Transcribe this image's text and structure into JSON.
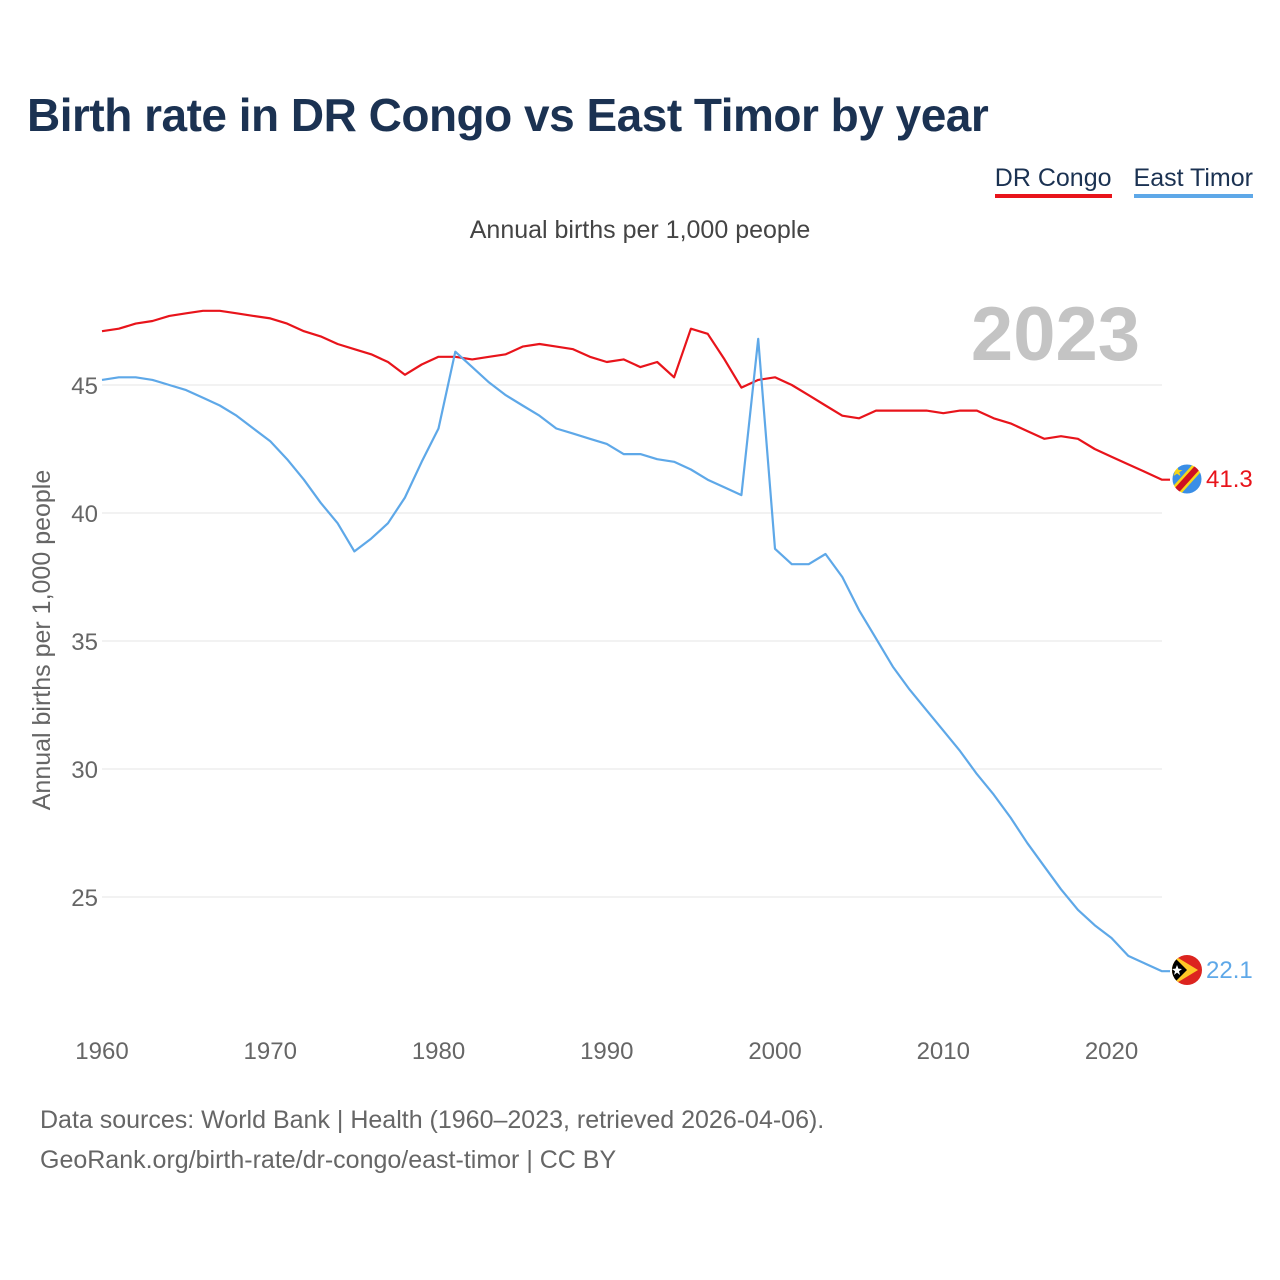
{
  "title": "Birth rate in DR Congo vs East Timor by year",
  "subtitle": "Annual births per 1,000 people",
  "legend": [
    {
      "name": "DR Congo",
      "color": "#e8141b"
    },
    {
      "name": "East Timor",
      "color": "#5ea8e8"
    }
  ],
  "footer": {
    "line1": "Data sources: World Bank | Health (1960–2023, retrieved 2026-04-06).",
    "line2": "GeoRank.org/birth-rate/dr-congo/east-timor | CC BY"
  },
  "chart_data": {
    "type": "line",
    "title": "Birth rate in DR Congo vs East Timor by year",
    "xlabel": "",
    "ylabel": "Annual births per 1,000 people",
    "year_label": "2023",
    "xlim": [
      1960,
      2023
    ],
    "ylim": [
      20.5,
      49
    ],
    "x_ticks": [
      1960,
      1970,
      1980,
      1990,
      2000,
      2010,
      2020
    ],
    "y_ticks": [
      25,
      30,
      35,
      40,
      45
    ],
    "grid": true,
    "x": [
      1960,
      1961,
      1962,
      1963,
      1964,
      1965,
      1966,
      1967,
      1968,
      1969,
      1970,
      1971,
      1972,
      1973,
      1974,
      1975,
      1976,
      1977,
      1978,
      1979,
      1980,
      1981,
      1982,
      1983,
      1984,
      1985,
      1986,
      1987,
      1988,
      1989,
      1990,
      1991,
      1992,
      1993,
      1994,
      1995,
      1996,
      1997,
      1998,
      1999,
      2000,
      2001,
      2002,
      2003,
      2004,
      2005,
      2006,
      2007,
      2008,
      2009,
      2010,
      2011,
      2012,
      2013,
      2014,
      2015,
      2016,
      2017,
      2018,
      2019,
      2020,
      2021,
      2022,
      2023
    ],
    "series": [
      {
        "name": "DR Congo",
        "color": "#e8141b",
        "end_label": "41.3",
        "values": [
          47.1,
          47.2,
          47.4,
          47.5,
          47.7,
          47.8,
          47.9,
          47.9,
          47.8,
          47.7,
          47.6,
          47.4,
          47.1,
          46.9,
          46.6,
          46.4,
          46.2,
          45.9,
          45.4,
          45.8,
          46.1,
          46.1,
          46.0,
          46.1,
          46.2,
          46.5,
          46.6,
          46.5,
          46.4,
          46.1,
          45.9,
          46.0,
          45.7,
          45.9,
          45.3,
          47.2,
          47.0,
          46.0,
          44.9,
          45.2,
          45.3,
          45.0,
          44.6,
          44.2,
          43.8,
          43.7,
          44.0,
          44.0,
          44.0,
          44.0,
          43.9,
          44.0,
          44.0,
          43.7,
          43.5,
          43.2,
          42.9,
          43.0,
          42.9,
          42.5,
          42.2,
          41.9,
          41.6,
          41.3
        ]
      },
      {
        "name": "East Timor",
        "color": "#5ea8e8",
        "end_label": "22.1",
        "values": [
          45.2,
          45.3,
          45.3,
          45.2,
          45.0,
          44.8,
          44.5,
          44.2,
          43.8,
          43.3,
          42.8,
          42.1,
          41.3,
          40.4,
          39.6,
          38.5,
          39.0,
          39.6,
          40.6,
          42.0,
          43.3,
          46.3,
          45.7,
          45.1,
          44.6,
          44.2,
          43.8,
          43.3,
          43.1,
          42.9,
          42.7,
          42.3,
          42.3,
          42.1,
          42.0,
          41.7,
          41.3,
          41.0,
          40.7,
          46.8,
          38.6,
          38.0,
          38.0,
          38.4,
          37.5,
          36.2,
          35.1,
          34.0,
          33.1,
          32.3,
          31.5,
          30.7,
          29.8,
          29.0,
          28.1,
          27.1,
          26.2,
          25.3,
          24.5,
          23.9,
          23.4,
          22.7,
          22.4,
          22.1
        ]
      }
    ]
  }
}
